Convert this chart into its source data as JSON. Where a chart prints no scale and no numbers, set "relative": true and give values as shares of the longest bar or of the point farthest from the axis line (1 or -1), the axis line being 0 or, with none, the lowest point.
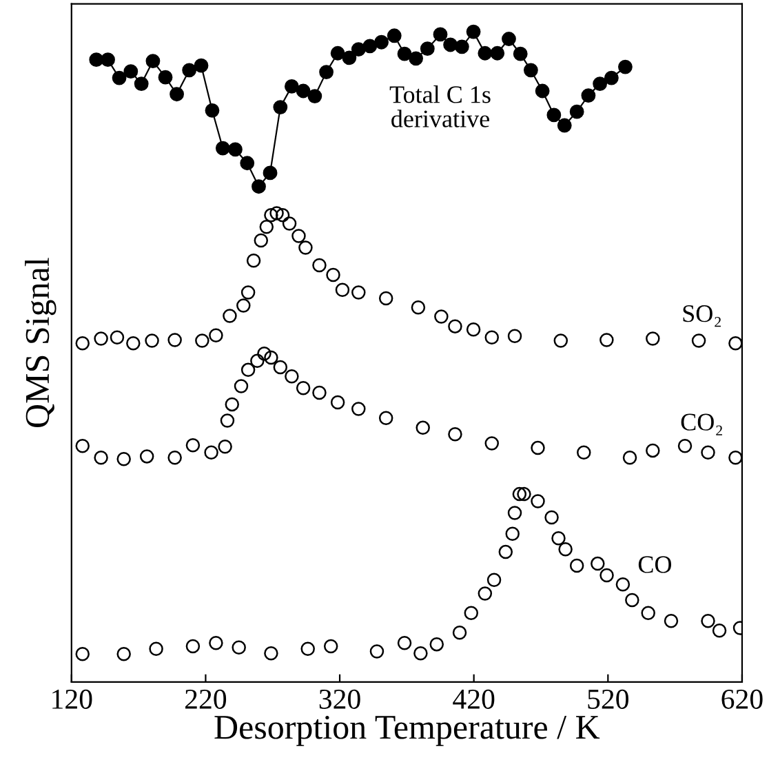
{
  "chart_data": {
    "type": "scatter",
    "relative": true,
    "xlabel": "Desorption Temperature / K",
    "ylabel": "QMS Signal",
    "xlim": [
      120,
      620
    ],
    "xticks": [
      120,
      220,
      320,
      420,
      520,
      620
    ],
    "marker": "circle",
    "grid": false,
    "legend": false,
    "tick_labels": "x",
    "series": [
      {
        "type": "line",
        "color": "#000000",
        "x": [
          138.5,
          147.1,
          155.6,
          164.2,
          172.1,
          180.7,
          190.0,
          198.5,
          207.8,
          216.7,
          224.9,
          232.8,
          242.1,
          251.0,
          259.6,
          268.1,
          275.7,
          284.2,
          292.8,
          301.4,
          310.0,
          318.5,
          327.1,
          334.0,
          342.5,
          351.1,
          360.7,
          368.3,
          376.8,
          385.4,
          395.0,
          402.5,
          411.1,
          419.7,
          428.3,
          437.5,
          446.1,
          454.7,
          462.5,
          471.1,
          479.7,
          487.6,
          496.8,
          505.4,
          514.0,
          522.6,
          532.9
        ],
        "values": [
          0.957,
          0.957,
          0.929,
          0.939,
          0.92,
          0.955,
          0.93,
          0.904,
          0.941,
          0.948,
          0.879,
          0.821,
          0.819,
          0.798,
          0.762,
          0.783,
          0.884,
          0.916,
          0.909,
          0.901,
          0.938,
          0.967,
          0.96,
          0.973,
          0.978,
          0.984,
          0.994,
          0.966,
          0.959,
          0.974,
          0.996,
          0.98,
          0.977,
          1,
          0.967,
          0.967,
          0.989,
          0.966,
          0.941,
          0.909,
          0.872,
          0.856,
          0.877,
          0.902,
          0.92,
          0.929,
          0.946
        ]
      },
      {
        "color": "#000000",
        "x": [
          128.2,
          142,
          154,
          166,
          180,
          197,
          217.4,
          227.7,
          238,
          248.2,
          251.7,
          255.8,
          261.3,
          265.4,
          268.8,
          273,
          277.4,
          282.5,
          289.4,
          294.5,
          304.8,
          315.1,
          322,
          334,
          354.5,
          378.5,
          395.7,
          406,
          419.7,
          433.4,
          450.5,
          484.8,
          519,
          553.4,
          587.7,
          615.1
        ],
        "values": [
          0.521,
          0.528,
          0.53,
          0.521,
          0.525,
          0.526,
          0.525,
          0.533,
          0.563,
          0.579,
          0.599,
          0.648,
          0.679,
          0.7,
          0.718,
          0.721,
          0.718,
          0.705,
          0.686,
          0.668,
          0.641,
          0.626,
          0.603,
          0.599,
          0.59,
          0.576,
          0.562,
          0.547,
          0.542,
          0.53,
          0.532,
          0.525,
          0.526,
          0.528,
          0.525,
          0.521
        ]
      },
      {
        "color": "#000000",
        "x": [
          128.2,
          142,
          159,
          176.2,
          197,
          210.5,
          224.2,
          234.5,
          236.2,
          239.7,
          246.5,
          251.7,
          258.5,
          263.7,
          268.8,
          275.7,
          284.2,
          292.8,
          304.8,
          318.5,
          334,
          354.5,
          382,
          406,
          433.4,
          467.7,
          502,
          536.3,
          553.4,
          577.4,
          594.6,
          615.1
        ],
        "values": [
          0.363,
          0.345,
          0.343,
          0.347,
          0.345,
          0.364,
          0.353,
          0.362,
          0.402,
          0.427,
          0.455,
          0.48,
          0.494,
          0.505,
          0.499,
          0.484,
          0.47,
          0.452,
          0.445,
          0.43,
          0.42,
          0.406,
          0.391,
          0.381,
          0.367,
          0.36,
          0.353,
          0.345,
          0.356,
          0.363,
          0.353,
          0.345
        ]
      },
      {
        "color": "#000000",
        "x": [
          128.2,
          159,
          183.1,
          210.5,
          227.7,
          244.8,
          268.8,
          296.2,
          313.4,
          347.7,
          368.3,
          380.3,
          392.3,
          409.4,
          418,
          428.3,
          435.1,
          443.7,
          448.8,
          450.5,
          454,
          457.4,
          467.7,
          478,
          483.1,
          488.3,
          496.8,
          512.3,
          519.1,
          531.1,
          538,
          550,
          567.1,
          594.6,
          603.1,
          618.5
        ],
        "values": [
          0.043,
          0.043,
          0.051,
          0.055,
          0.06,
          0.053,
          0.044,
          0.051,
          0.055,
          0.047,
          0.06,
          0.044,
          0.058,
          0.076,
          0.106,
          0.136,
          0.157,
          0.2,
          0.228,
          0.26,
          0.289,
          0.289,
          0.278,
          0.253,
          0.221,
          0.204,
          0.179,
          0.182,
          0.164,
          0.15,
          0.126,
          0.106,
          0.094,
          0.094,
          0.079,
          0.083
        ]
      }
    ],
    "annotations": [
      "Total C 1s\nderivative",
      "SO₂",
      "CO₂",
      "CO"
    ]
  }
}
